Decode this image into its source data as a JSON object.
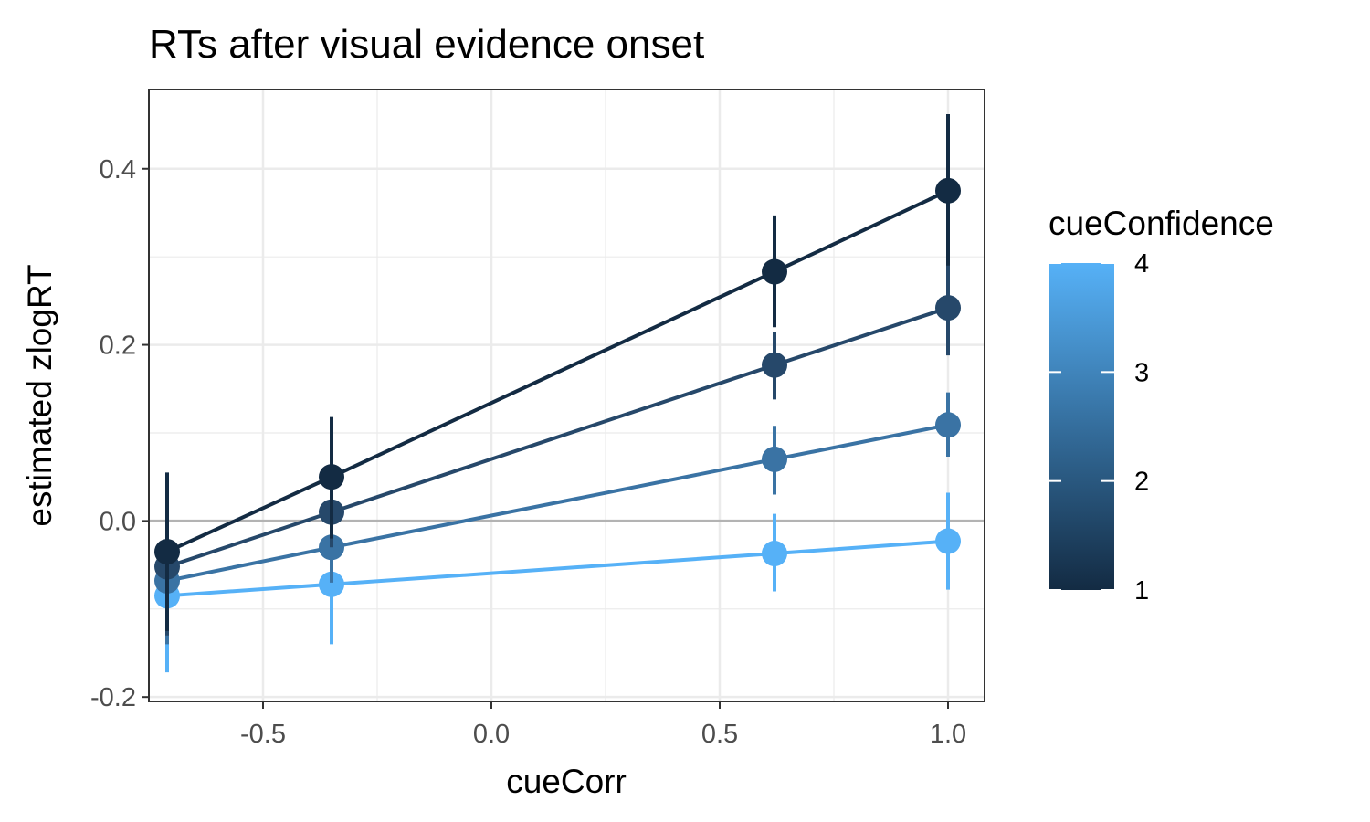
{
  "chart_data": {
    "type": "line",
    "title": "RTs after visual evidence onset",
    "xlabel": "cueCorr",
    "ylabel": "estimated zlogRT",
    "xlim": [
      -0.75,
      1.08
    ],
    "ylim": [
      -0.205,
      0.49
    ],
    "x_ticks": [
      -0.5,
      0.0,
      0.5,
      1.0
    ],
    "x_tick_labels": [
      "-0.5",
      "0.0",
      "0.5",
      "1.0"
    ],
    "y_ticks": [
      -0.2,
      0.0,
      0.2,
      0.4
    ],
    "y_tick_labels": [
      "-0.2",
      "0.0",
      "0.2",
      "0.4"
    ],
    "reference_line_y": 0,
    "grid": true,
    "legend": {
      "title": "cueConfidence",
      "type": "colorbar",
      "placement": "right",
      "min": 1,
      "max": 4,
      "ticks": [
        1,
        2,
        3,
        4
      ],
      "tick_labels": [
        "1",
        "2",
        "3",
        "4"
      ],
      "color_low": "#132B43",
      "color_high": "#56B1F7"
    },
    "series": [
      {
        "cueConfidence": 1,
        "color": "#132B43",
        "x": [
          -0.71,
          -0.35,
          0.62,
          1.0
        ],
        "y": [
          -0.035,
          0.05,
          0.283,
          0.375
        ],
        "lower": [
          -0.125,
          -0.02,
          0.22,
          0.29
        ],
        "upper": [
          0.055,
          0.118,
          0.347,
          0.462
        ]
      },
      {
        "cueConfidence": 2,
        "color": "#26486A",
        "x": [
          -0.71,
          -0.35,
          0.62,
          1.0
        ],
        "y": [
          -0.052,
          0.01,
          0.177,
          0.242
        ],
        "lower": [
          -0.13,
          -0.03,
          0.138,
          0.188
        ],
        "upper": [
          0.025,
          0.048,
          0.215,
          0.296
        ]
      },
      {
        "cueConfidence": 3,
        "color": "#3A73A4",
        "x": [
          -0.71,
          -0.35,
          0.62,
          1.0
        ],
        "y": [
          -0.068,
          -0.03,
          0.07,
          0.109
        ],
        "lower": [
          -0.14,
          -0.07,
          0.03,
          0.073
        ],
        "upper": [
          0.005,
          0.012,
          0.108,
          0.146
        ]
      },
      {
        "cueConfidence": 4,
        "color": "#56B1F7",
        "x": [
          -0.71,
          -0.35,
          0.62,
          1.0
        ],
        "y": [
          -0.085,
          -0.072,
          -0.037,
          -0.023
        ],
        "lower": [
          -0.172,
          -0.14,
          -0.08,
          -0.078
        ],
        "upper": [
          0.005,
          -0.005,
          0.008,
          0.032
        ]
      }
    ]
  }
}
